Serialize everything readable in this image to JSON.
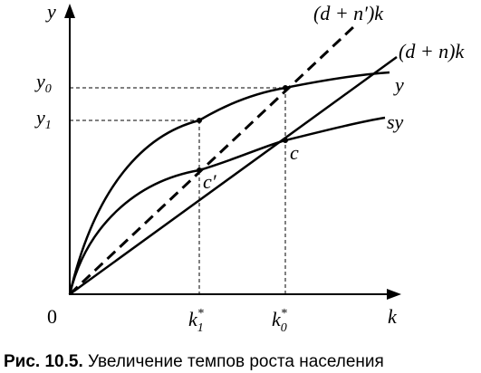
{
  "axes": {
    "y_label": "y",
    "x_label": "k",
    "origin": "0"
  },
  "y_marks": [
    {
      "base": "y",
      "sub": "0"
    },
    {
      "base": "y",
      "sub": "1"
    }
  ],
  "k_marks": [
    {
      "base": "k",
      "sup": "*",
      "sub": "1"
    },
    {
      "base": "k",
      "sup": "*",
      "sub": "0"
    }
  ],
  "curve_labels": {
    "line_new": "(d + n′)k",
    "line_old": "(d + n)k",
    "output": "y",
    "savings": "sy"
  },
  "points": {
    "c": "c",
    "c_prime": "c′"
  },
  "caption": {
    "number": "Рис. 10.5.",
    "text": "Увеличение темпов роста населения"
  }
}
